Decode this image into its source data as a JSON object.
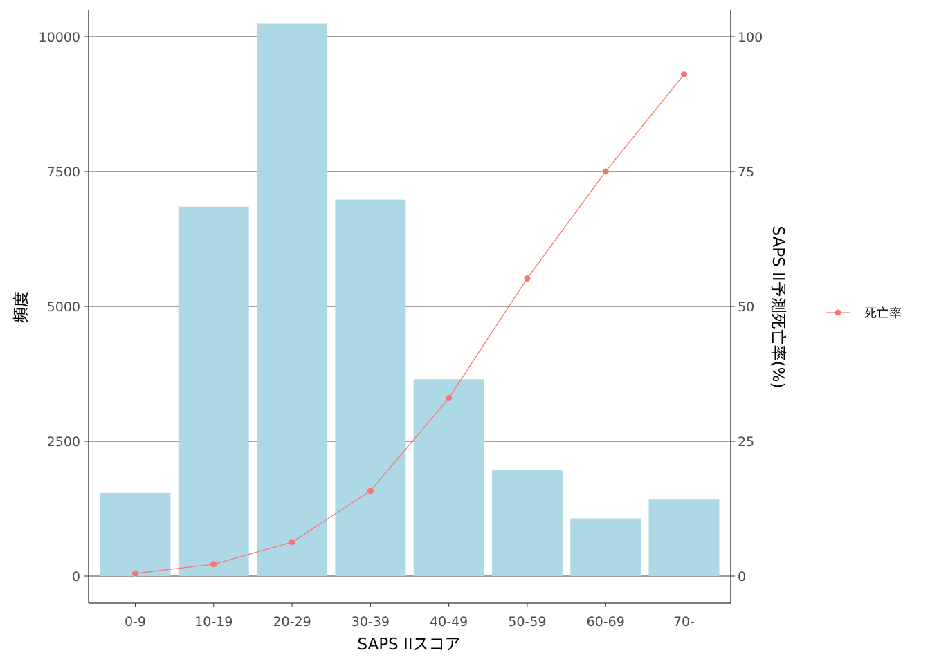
{
  "chart_data": {
    "type": "bar",
    "categories": [
      "0-9",
      "10-19",
      "20-29",
      "30-39",
      "40-49",
      "50-59",
      "60-69",
      "70-"
    ],
    "bar_values": [
      1540,
      6850,
      10250,
      6980,
      3650,
      1960,
      1070,
      1420
    ],
    "line": {
      "name": "死亡率",
      "values": [
        0.5,
        2.2,
        6.3,
        15.8,
        33.0,
        55.2,
        75.0,
        93.0
      ],
      "color": "#F8766D"
    },
    "bar_color": "#ADD8E6",
    "xlabel": "SAPS IIスコア",
    "ylabel": "頻度",
    "y2label": "SAPS II予測死亡率(%)",
    "ylim": [
      -500,
      10500
    ],
    "y2lim": [
      -5,
      105
    ],
    "yticks": [
      0,
      2500,
      5000,
      7500,
      10000
    ],
    "y2ticks": [
      0,
      25,
      50,
      75,
      100
    ],
    "grid": "major-horizontal",
    "legend_position": "right"
  }
}
